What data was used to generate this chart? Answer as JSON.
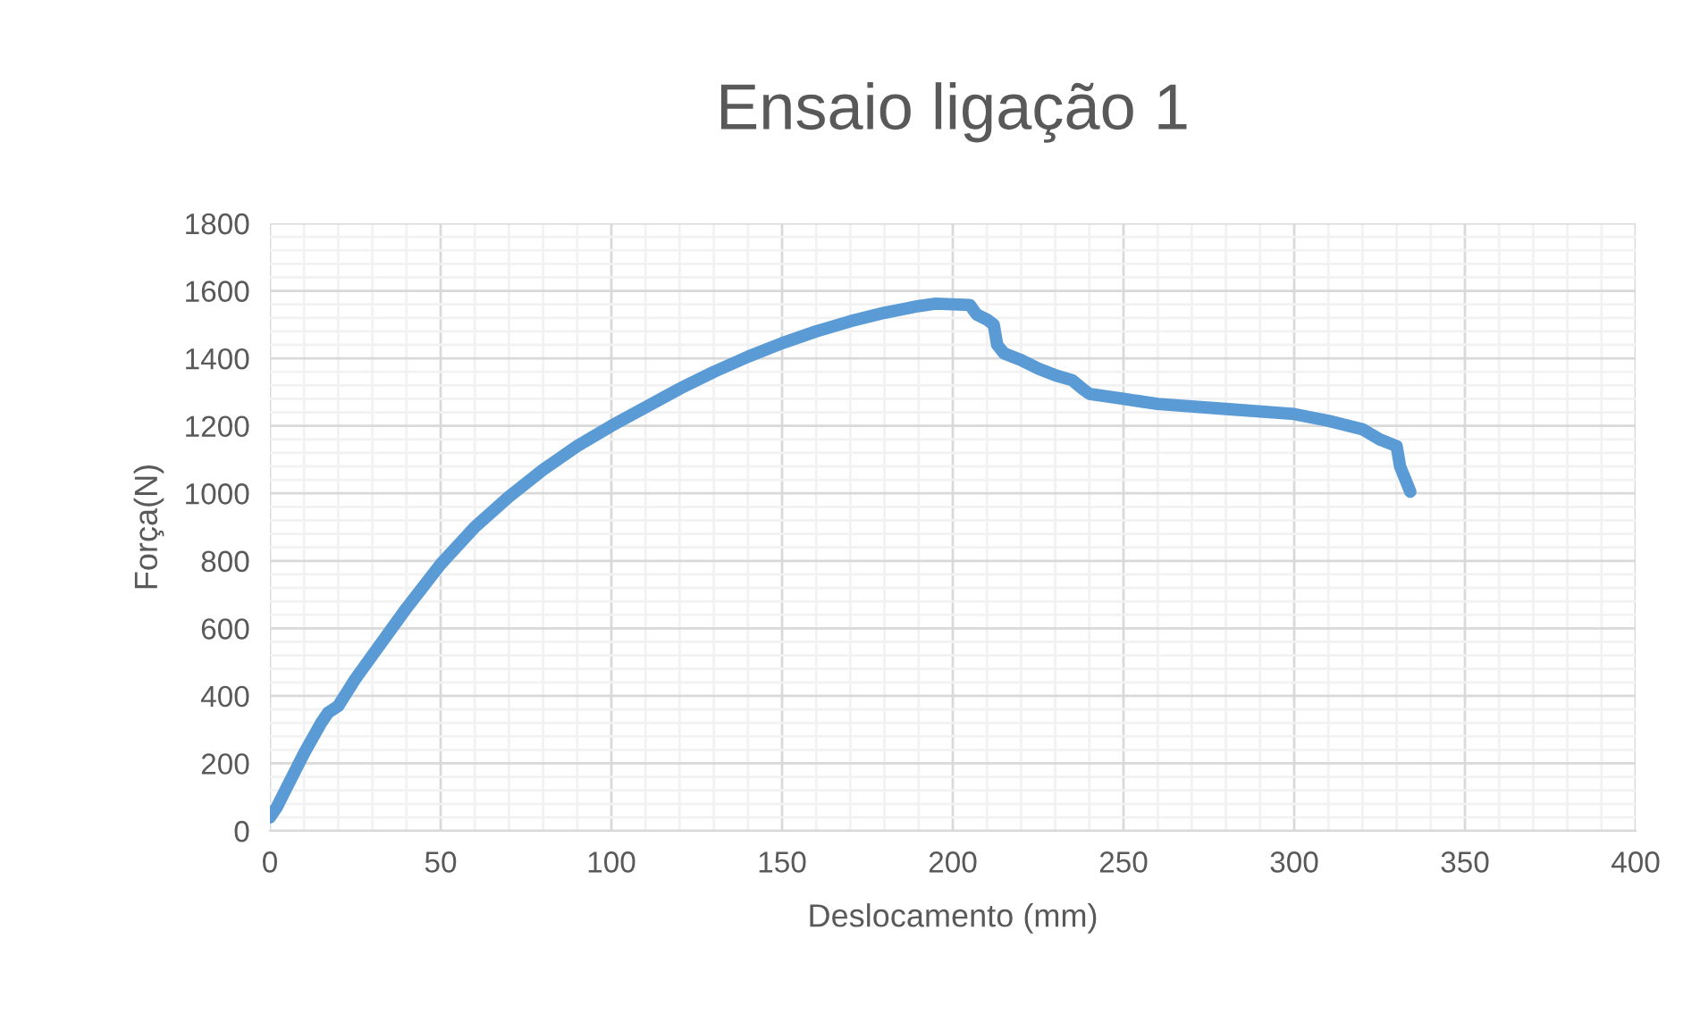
{
  "chart_data": {
    "type": "line",
    "title": "Ensaio ligação 1",
    "xlabel": "Deslocamento (mm)",
    "ylabel": "Força(N)",
    "xlim": [
      0,
      400
    ],
    "xticks": [
      0,
      50,
      100,
      150,
      200,
      250,
      300,
      350,
      400
    ],
    "ylim": [
      0,
      1800
    ],
    "yticks": [
      0,
      200,
      400,
      600,
      800,
      1000,
      1200,
      1400,
      1600,
      1800
    ],
    "grid": true,
    "marker": "none",
    "line_style": "solid",
    "series": [
      {
        "color": "#5b9bd5",
        "x": [
          0,
          2,
          5,
          10,
          15,
          17,
          20,
          25,
          30,
          40,
          50,
          60,
          70,
          80,
          90,
          100,
          110,
          120,
          130,
          140,
          150,
          160,
          170,
          180,
          190,
          195,
          200,
          205,
          207,
          210,
          212,
          213,
          215,
          220,
          225,
          230,
          235,
          238,
          240,
          250,
          260,
          280,
          300,
          310,
          320,
          325,
          330,
          331,
          333,
          334
        ],
        "values": [
          40,
          70,
          130,
          230,
          320,
          350,
          370,
          450,
          520,
          660,
          790,
          900,
          990,
          1070,
          1140,
          1200,
          1255,
          1310,
          1360,
          1405,
          1445,
          1480,
          1510,
          1535,
          1555,
          1562,
          1560,
          1558,
          1530,
          1515,
          1500,
          1440,
          1415,
          1395,
          1370,
          1350,
          1335,
          1310,
          1295,
          1280,
          1265,
          1250,
          1235,
          1215,
          1190,
          1160,
          1140,
          1080,
          1030,
          1005
        ]
      }
    ]
  }
}
